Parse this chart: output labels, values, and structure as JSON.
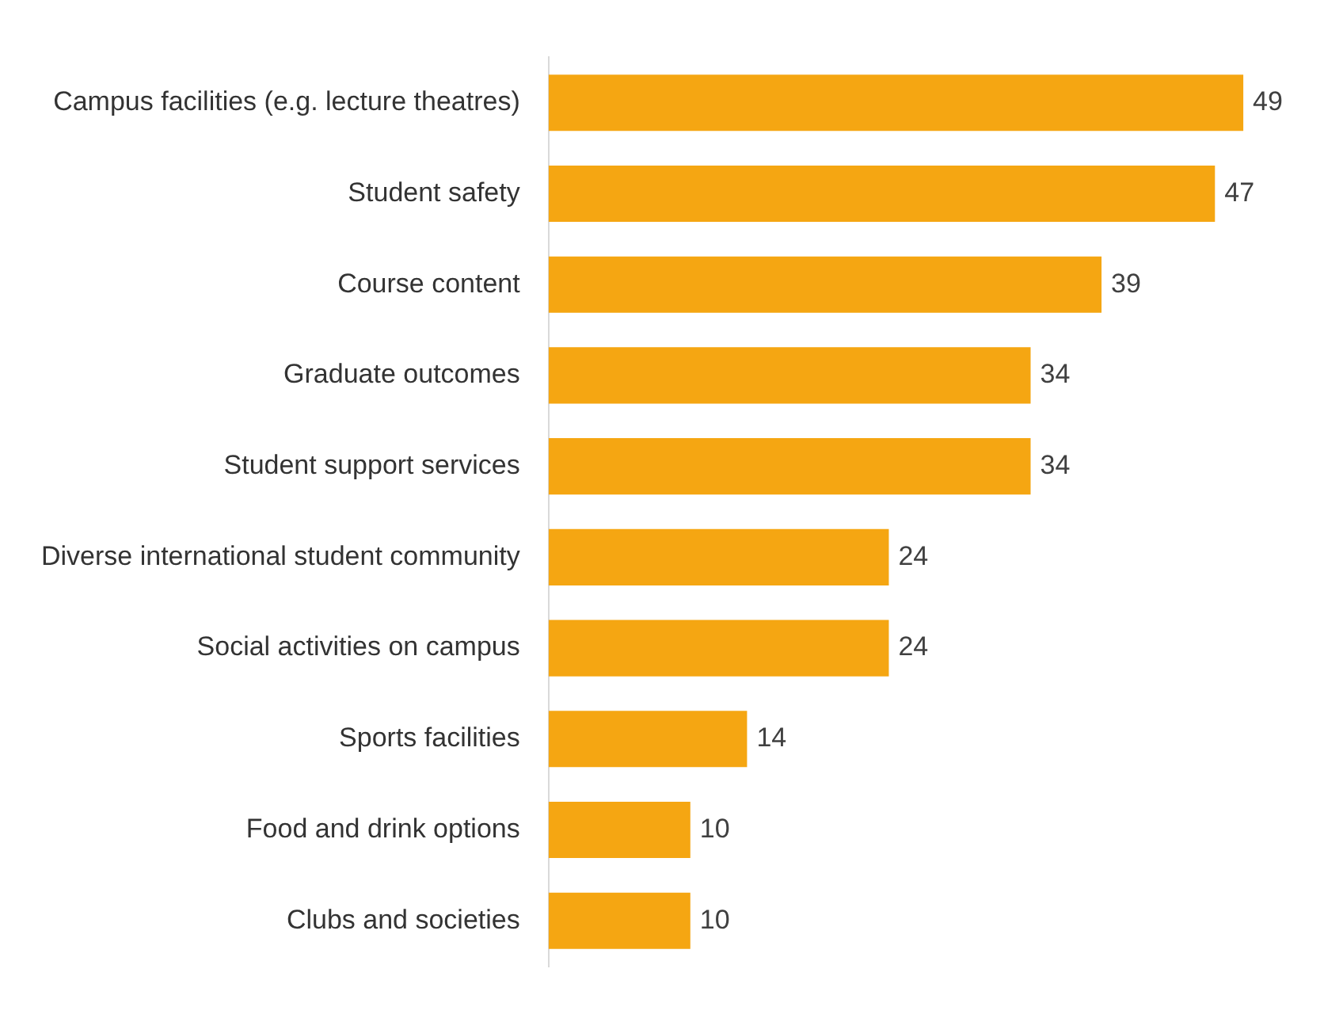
{
  "chart_data": {
    "type": "bar",
    "orientation": "horizontal",
    "categories": [
      "Campus facilities (e.g. lecture theatres)",
      "Student safety",
      "Course content",
      "Graduate outcomes",
      "Student support services",
      "Diverse international student community",
      "Social activities on campus",
      "Sports facilities",
      "Food and drink options",
      "Clubs and societies"
    ],
    "values": [
      49,
      47,
      39,
      34,
      34,
      24,
      24,
      14,
      10,
      10
    ],
    "color": "#f5a612",
    "data_labels": true,
    "grid": false,
    "legend": false
  }
}
